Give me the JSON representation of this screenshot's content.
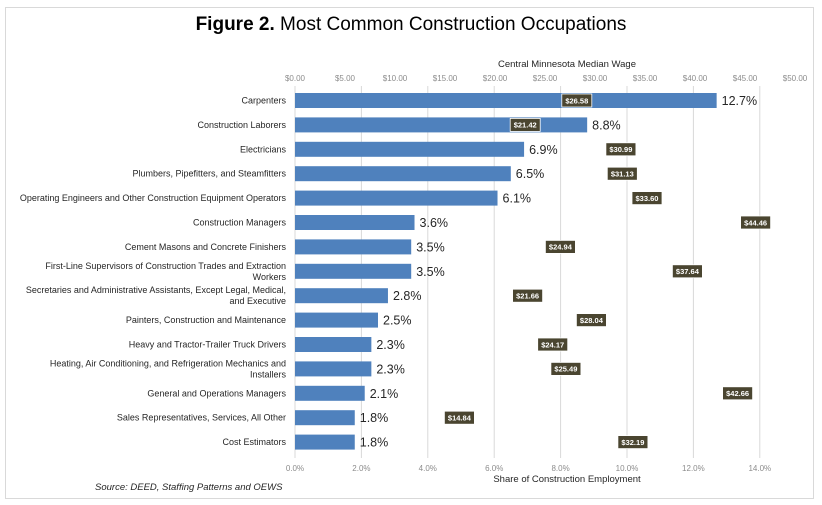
{
  "title": {
    "bold": "Figure 2.",
    "rest": " Most Common Construction Occupations"
  },
  "source": "Source: DEED, Staffing Patterns and OEWS",
  "chart_data": {
    "type": "bar",
    "orientation": "horizontal",
    "title": "Figure 2. Most Common Construction Occupations",
    "xlabel": "Share of Construction Employment",
    "x2label": "Central Minnesota Median Wage",
    "ylabel": "",
    "xlim": [
      0,
      15
    ],
    "x2lim": [
      0,
      50
    ],
    "grid": true,
    "x_ticks": [
      "0.0%",
      "2.0%",
      "4.0%",
      "6.0%",
      "8.0%",
      "10.0%",
      "12.0%",
      "14.0%"
    ],
    "x2_ticks": [
      "$0.00",
      "$5.00",
      "$10.00",
      "$15.00",
      "$20.00",
      "$25.00",
      "$30.00",
      "$35.00",
      "$40.00",
      "$45.00",
      "$50.00"
    ],
    "categories": [
      "Carpenters",
      "Construction Laborers",
      "Electricians",
      "Plumbers, Pipefitters, and Steamfitters",
      "Operating Engineers and Other Construction Equipment Operators",
      "Construction Managers",
      "Cement Masons and Concrete Finishers",
      "First-Line Supervisors of Construction Trades and Extraction Workers",
      "Secretaries and Administrative Assistants, Except Legal, Medical, and Executive",
      "Painters, Construction and Maintenance",
      "Heavy and Tractor-Trailer Truck Drivers",
      "Heating, Air Conditioning, and Refrigeration Mechanics and Installers",
      "General and Operations Managers",
      "Sales Representatives, Services, All Other",
      "Cost Estimators"
    ],
    "category_lines": [
      [
        "Carpenters"
      ],
      [
        "Construction Laborers"
      ],
      [
        "Electricians"
      ],
      [
        "Plumbers, Pipefitters, and Steamfitters"
      ],
      [
        "Operating Engineers and Other Construction Equipment Operators"
      ],
      [
        "Construction Managers"
      ],
      [
        "Cement Masons and Concrete Finishers"
      ],
      [
        "First-Line Supervisors of Construction Trades and Extraction",
        "Workers"
      ],
      [
        "Secretaries and Administrative Assistants, Except Legal, Medical,",
        "and Executive"
      ],
      [
        "Painters, Construction and Maintenance"
      ],
      [
        "Heavy and Tractor-Trailer Truck Drivers"
      ],
      [
        "Heating, Air Conditioning, and Refrigeration Mechanics and",
        "Installers"
      ],
      [
        "General and Operations Managers"
      ],
      [
        "Sales Representatives, Services, All Other"
      ],
      [
        "Cost Estimators"
      ]
    ],
    "series": [
      {
        "name": "Share of Construction Employment",
        "color": "#4f81bd",
        "values": [
          12.7,
          8.8,
          6.9,
          6.5,
          6.1,
          3.6,
          3.5,
          3.5,
          2.8,
          2.5,
          2.3,
          2.3,
          2.1,
          1.8,
          1.8
        ],
        "labels": [
          "12.7%",
          "8.8%",
          "6.9%",
          "6.5%",
          "6.1%",
          "3.6%",
          "3.5%",
          "3.5%",
          "2.8%",
          "2.5%",
          "2.3%",
          "2.3%",
          "2.1%",
          "1.8%",
          "1.8%"
        ]
      },
      {
        "name": "Central Minnesota Median Wage",
        "color": "#4a4530",
        "values": [
          26.58,
          21.42,
          30.99,
          31.13,
          33.6,
          44.46,
          24.94,
          37.64,
          21.66,
          28.04,
          24.17,
          25.49,
          42.66,
          14.84,
          32.19
        ],
        "labels": [
          "$26.58",
          "$21.42",
          "$30.99",
          "$31.13",
          "$33.60",
          "$44.46",
          "$24.94",
          "$37.64",
          "$21.66",
          "$28.04",
          "$24.17",
          "$25.49",
          "$42.66",
          "$14.84",
          "$32.19"
        ]
      }
    ]
  }
}
